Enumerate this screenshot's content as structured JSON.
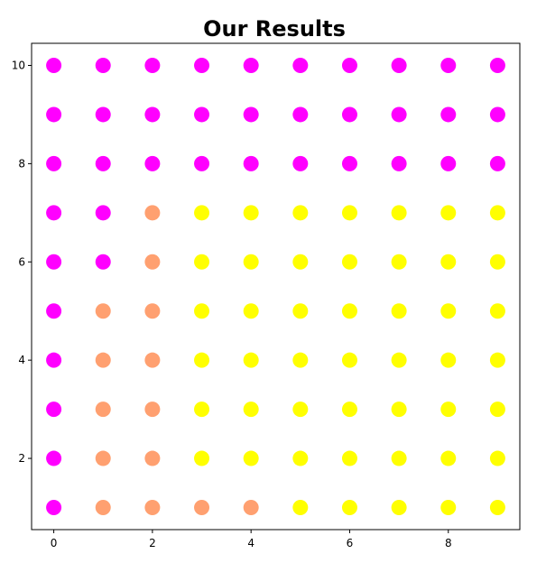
{
  "chart_data": {
    "type": "scatter",
    "title": "Our Results",
    "xlabel": "",
    "ylabel": "",
    "xlim": [
      -0.45,
      9.45
    ],
    "ylim": [
      0.55,
      10.45
    ],
    "x_ticks": [
      "0",
      "2",
      "4",
      "6",
      "8"
    ],
    "y_ticks": [
      "2",
      "4",
      "6",
      "8",
      "10"
    ],
    "grid": false,
    "colors": {
      "magenta": "#ff00ff",
      "orange": "#ffa070",
      "yellow": "#ffff00"
    },
    "x": [
      0,
      1,
      2,
      3,
      4,
      5,
      6,
      7,
      8,
      9
    ],
    "y": [
      10,
      9,
      8,
      7,
      6,
      5,
      4,
      3,
      2,
      1
    ],
    "color_grid": [
      [
        "magenta",
        "magenta",
        "magenta",
        "magenta",
        "magenta",
        "magenta",
        "magenta",
        "magenta",
        "magenta",
        "magenta"
      ],
      [
        "magenta",
        "magenta",
        "magenta",
        "magenta",
        "magenta",
        "magenta",
        "magenta",
        "magenta",
        "magenta",
        "magenta"
      ],
      [
        "magenta",
        "magenta",
        "magenta",
        "magenta",
        "magenta",
        "magenta",
        "magenta",
        "magenta",
        "magenta",
        "magenta"
      ],
      [
        "magenta",
        "magenta",
        "orange",
        "yellow",
        "yellow",
        "yellow",
        "yellow",
        "yellow",
        "yellow",
        "yellow"
      ],
      [
        "magenta",
        "magenta",
        "orange",
        "yellow",
        "yellow",
        "yellow",
        "yellow",
        "yellow",
        "yellow",
        "yellow"
      ],
      [
        "magenta",
        "orange",
        "orange",
        "yellow",
        "yellow",
        "yellow",
        "yellow",
        "yellow",
        "yellow",
        "yellow"
      ],
      [
        "magenta",
        "orange",
        "orange",
        "yellow",
        "yellow",
        "yellow",
        "yellow",
        "yellow",
        "yellow",
        "yellow"
      ],
      [
        "magenta",
        "orange",
        "orange",
        "yellow",
        "yellow",
        "yellow",
        "yellow",
        "yellow",
        "yellow",
        "yellow"
      ],
      [
        "magenta",
        "orange",
        "orange",
        "yellow",
        "yellow",
        "yellow",
        "yellow",
        "yellow",
        "yellow",
        "yellow"
      ],
      [
        "magenta",
        "orange",
        "orange",
        "orange",
        "orange",
        "yellow",
        "yellow",
        "yellow",
        "yellow",
        "yellow"
      ]
    ]
  }
}
